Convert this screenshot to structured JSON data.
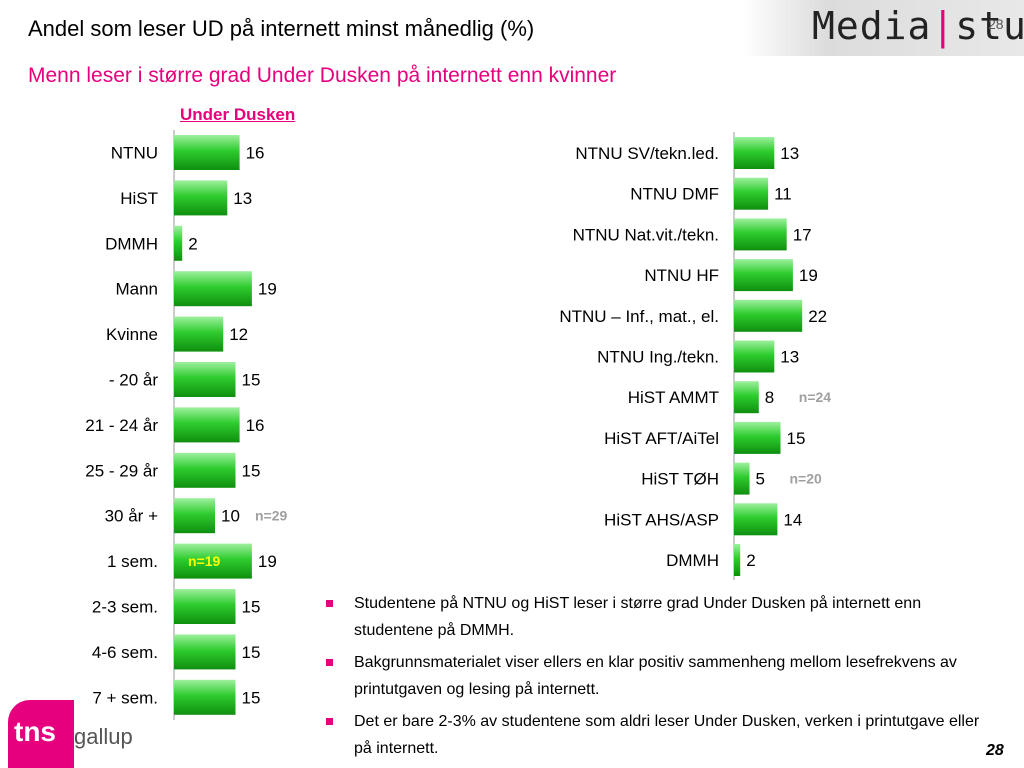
{
  "header": {
    "title": "Andel som leser UD på internett minst månedlig (%)",
    "subtitle": "Menn leser i større grad Under Dusken på internett enn kvinner",
    "logo_left": "Media",
    "logo_right": "stud",
    "logo_number": "28"
  },
  "chart_label": "Under Dusken",
  "chart_data": [
    {
      "type": "bar",
      "orientation": "horizontal",
      "categories": [
        "NTNU",
        "HiST",
        "DMMH",
        "Mann",
        "Kvinne",
        "- 20 år",
        "21 - 24 år",
        "25 - 29 år",
        "30 år +",
        "1 sem.",
        "2-3 sem.",
        "4-6 sem.",
        "7 + sem."
      ],
      "values": [
        16,
        13,
        2,
        19,
        12,
        15,
        16,
        15,
        10,
        19,
        15,
        15,
        15
      ],
      "annotations": [
        {
          "category": "30 år +",
          "text": "n=29"
        },
        {
          "category": "1 sem.",
          "text": "n=19"
        }
      ],
      "color": "#2ecc2e"
    },
    {
      "type": "bar",
      "orientation": "horizontal",
      "categories": [
        "NTNU SV/tekn.led.",
        "NTNU DMF",
        "NTNU Nat.vit./tekn.",
        "NTNU HF",
        "NTNU – Inf., mat., el.",
        "NTNU Ing./tekn.",
        "HiST AMMT",
        "HiST AFT/AiTel",
        "HiST TØH",
        "HiST AHS/ASP",
        "DMMH"
      ],
      "values": [
        13,
        11,
        17,
        19,
        22,
        13,
        8,
        15,
        5,
        14,
        2
      ],
      "annotations": [
        {
          "category": "HiST AMMT",
          "text": "n=24"
        },
        {
          "category": "HiST TØH",
          "text": "n=20"
        }
      ],
      "color": "#2ecc2e"
    }
  ],
  "bullets": [
    "Studentene på NTNU og HiST leser i større grad Under Dusken på internett enn studentene på DMMH.",
    "Bakgrunnsmaterialet viser ellers en klar positiv sammenheng mellom lesefrekvens av printutgaven og lesing på internett.",
    "Det er bare 2-3% av studentene som aldri leser Under Dusken, verken i printutgave eller på internett."
  ],
  "footer": {
    "page_number": "28",
    "brand_tns": "tns",
    "brand_gallup": "gallup"
  }
}
